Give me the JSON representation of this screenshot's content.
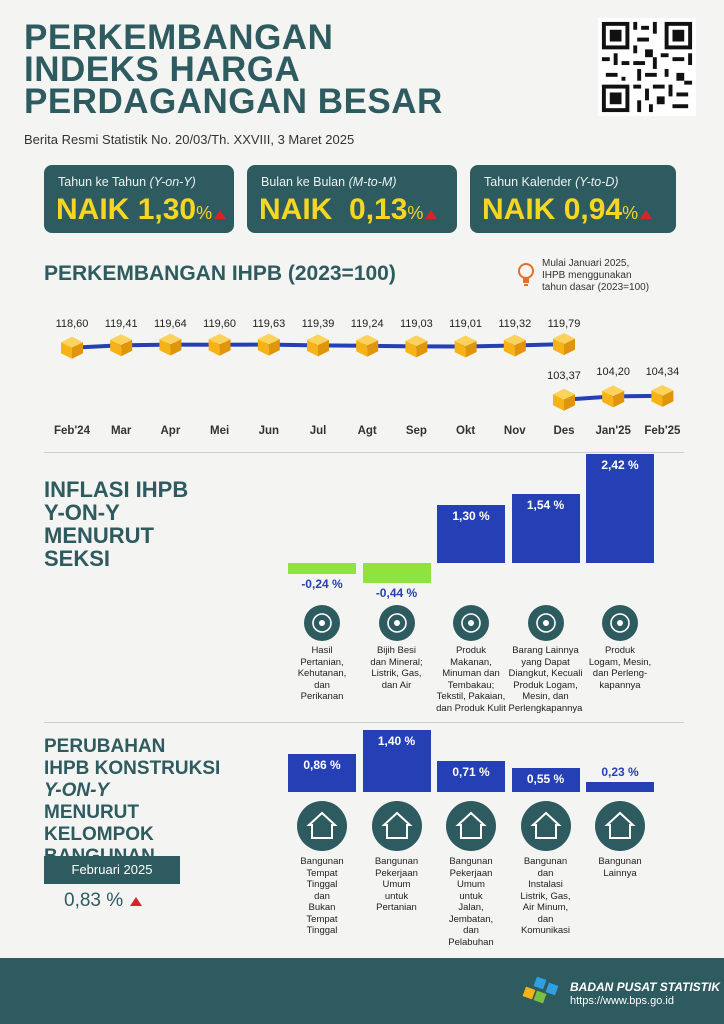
{
  "header": {
    "title": "PERKEMBANGAN\nINDEKS HARGA\nPERDAGANGAN BESAR",
    "subtitle": "Berita Resmi Statistik No. 20/03/Th. XXVIII, 3 Maret 2025"
  },
  "cards": [
    {
      "label": "Tahun ke Tahun",
      "label_em": "(Y-on-Y)",
      "word": "NAIK",
      "value": "1,30",
      "unit": "%"
    },
    {
      "label": "Bulan ke Bulan",
      "label_em": "(M-to-M)",
      "word": "NAIK",
      "value": "0,13",
      "unit": "%"
    },
    {
      "label": "Tahun Kalender",
      "label_em": "(Y-to-D)",
      "word": "NAIK",
      "value": "0,94",
      "unit": "%"
    }
  ],
  "ihpb": {
    "title": "PERKEMBANGAN IHPB (2023=100)",
    "note": "Mulai Januari 2025,\nIHPB menggunakan\ntahun dasar (2023=100)",
    "months": [
      "Feb'24",
      "Mar",
      "Apr",
      "Mei",
      "Jun",
      "Jul",
      "Agt",
      "Sep",
      "Okt",
      "Nov",
      "Des",
      "Jan'25",
      "Feb'25"
    ],
    "old_base": [
      "118,60",
      "119,41",
      "119,64",
      "119,60",
      "119,63",
      "119,39",
      "119,24",
      "119,03",
      "119,01",
      "119,32",
      "119,79"
    ],
    "new_base": [
      "103,37",
      "104,20",
      "104,34"
    ]
  },
  "chart_data": [
    {
      "type": "line",
      "title": "PERKEMBANGAN IHPB (2023=100)",
      "x": [
        "Feb'24",
        "Mar",
        "Apr",
        "Mei",
        "Jun",
        "Jul",
        "Agt",
        "Sep",
        "Okt",
        "Nov",
        "Des",
        "Jan'25",
        "Feb'25"
      ],
      "series": [
        {
          "values": [
            118.6,
            119.41,
            119.64,
            119.6,
            119.63,
            119.39,
            119.24,
            119.03,
            119.01,
            119.32,
            119.79,
            null,
            null
          ]
        },
        {
          "values": [
            null,
            null,
            null,
            null,
            null,
            null,
            null,
            null,
            null,
            null,
            103.37,
            104.2,
            104.34
          ]
        }
      ]
    },
    {
      "type": "bar",
      "title": "INFLASI IHPB Y-ON-Y MENURUT SEKSI",
      "categories": [
        "Hasil Pertanian, Kehutanan, dan Perikanan",
        "Bijih Besi dan Mineral; Listrik, Gas, dan Air",
        "Produk Makanan, Minuman dan Tembakau; Tekstil, Pakaian, dan Produk Kulit",
        "Barang Lainnya yang Dapat Diangkut, Kecuali Produk Logam, Mesin, dan Perlengkapannya",
        "Produk Logam, Mesin, dan Perlengkapannya"
      ],
      "values": [
        -0.24,
        -0.44,
        1.3,
        1.54,
        2.42
      ]
    },
    {
      "type": "bar",
      "title": "PERUBAHAN IHPB KONSTRUKSI Y-ON-Y MENURUT KELOMPOK BANGUNAN",
      "categories": [
        "Bangunan Tempat Tinggal dan Bukan Tempat Tinggal",
        "Bangunan Pekerjaan Umum untuk Pertanian",
        "Bangunan Pekerjaan Umum untuk Jalan, Jembatan, dan Pelabuhan",
        "Bangunan dan Instalasi Listrik, Gas, Air Minum, dan Komunikasi",
        "Bangunan Lainnya"
      ],
      "values": [
        0.86,
        1.4,
        0.71,
        0.55,
        0.23
      ]
    }
  ],
  "seksi": {
    "title": "INFLASI IHPB\nY-ON-Y\nMENURUT\nSEKSI",
    "value_labels": [
      "-0,24 %",
      "-0,44 %",
      "1,30 %",
      "1,54 %",
      "2,42 %"
    ],
    "labels": [
      "Hasil\nPertanian,\nKehutanan,\ndan\nPerikanan",
      "Bijih Besi\ndan Mineral;\nListrik, Gas,\ndan Air",
      "Produk\nMakanan,\nMinuman dan\nTembakau;\nTekstil, Pakaian,\ndan Produk Kulit",
      "Barang Lainnya\nyang Dapat\nDiangkut, Kecuali\nProduk Logam,\nMesin, dan\nPerlengkapannya",
      "Produk\nLogam, Mesin,\ndan Perleng-\nkapannya"
    ],
    "icons": [
      "plant-icon",
      "bulb-icon",
      "cart-icon",
      "box-icon",
      "gear-icon"
    ]
  },
  "konstruksi": {
    "title_1": "PERUBAHAN\nIHPB KONSTRUKSI",
    "title_2": "Y-ON-Y",
    "title_3": "MENURUT\nKELOMPOK\nBANGUNAN",
    "period": "Februari 2025",
    "total": "0,83 %",
    "value_labels": [
      "0,86 %",
      "1,40 %",
      "0,71 %",
      "0,55 %",
      "0,23 %"
    ],
    "labels": [
      "Bangunan\nTempat\nTinggal\ndan\nBukan\nTempat\nTinggal",
      "Bangunan\nPekerjaan\nUmum\nuntuk\nPertanian",
      "Bangunan\nPekerjaan\nUmum\nuntuk\nJalan,\nJembatan,\ndan\nPelabuhan",
      "Bangunan\ndan\nInstalasi\nListrik, Gas,\nAir Minum,\ndan\nKomunikasi",
      "Bangunan\nLainnya"
    ],
    "icons": [
      "house-icon",
      "farm-building-icon",
      "bridge-icon",
      "water-drop-icon",
      "building-icon"
    ]
  },
  "footer": {
    "org": "BADAN PUSAT STATISTIK",
    "url": "https://www.bps.go.id"
  },
  "colors": {
    "teal": "#2e5b5f",
    "yellow": "#f5d623",
    "blue": "#2540b5",
    "green": "#8ee33c",
    "red": "#d7232a",
    "cube": "#f7b315"
  }
}
